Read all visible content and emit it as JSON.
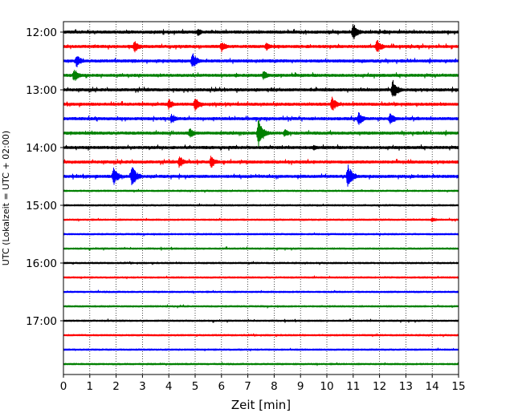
{
  "chart_data": {
    "type": "line",
    "title": "",
    "xlabel": "Zeit  [min]",
    "ylabel": "UTC (Lokalzeit = UTC + 02:00)",
    "xlim": [
      0,
      15
    ],
    "x_ticks": [
      0,
      1,
      2,
      3,
      4,
      5,
      6,
      7,
      8,
      9,
      10,
      11,
      12,
      13,
      14,
      15
    ],
    "y_tick_labels": [
      "12:00",
      "13:00",
      "14:00",
      "15:00",
      "16:00",
      "17:00"
    ],
    "grid": "vertical dotted lines at each minute",
    "trace_colors": [
      "#000000",
      "#ff0000",
      "#0000ff",
      "#008000"
    ],
    "line_interval_min": 15,
    "series": [
      {
        "start": "12:00",
        "color": "#000000",
        "events": [
          {
            "x": 5.1,
            "amp": 0.55
          },
          {
            "x": 11.0,
            "amp": 1.3
          },
          {
            "x": 12.2,
            "amp": 0.35
          }
        ]
      },
      {
        "start": "12:15",
        "color": "#ff0000",
        "events": [
          {
            "x": 2.7,
            "amp": 0.9
          },
          {
            "x": 6.0,
            "amp": 0.8
          },
          {
            "x": 7.7,
            "amp": 0.6
          },
          {
            "x": 11.9,
            "amp": 1.1
          }
        ]
      },
      {
        "start": "12:30",
        "color": "#0000ff",
        "events": [
          {
            "x": 0.5,
            "amp": 0.95
          },
          {
            "x": 4.9,
            "amp": 1.25
          }
        ]
      },
      {
        "start": "12:45",
        "color": "#008000",
        "events": [
          {
            "x": 0.4,
            "amp": 1.0
          },
          {
            "x": 7.6,
            "amp": 0.7
          }
        ]
      },
      {
        "start": "13:00",
        "color": "#000000",
        "events": [
          {
            "x": 12.5,
            "amp": 1.5
          }
        ]
      },
      {
        "start": "13:15",
        "color": "#ff0000",
        "events": [
          {
            "x": 4.0,
            "amp": 0.8
          },
          {
            "x": 5.0,
            "amp": 1.0
          },
          {
            "x": 10.2,
            "amp": 1.1
          }
        ]
      },
      {
        "start": "13:30",
        "color": "#0000ff",
        "events": [
          {
            "x": 4.1,
            "amp": 0.8
          },
          {
            "x": 11.2,
            "amp": 1.0
          },
          {
            "x": 12.4,
            "amp": 1.0
          }
        ]
      },
      {
        "start": "13:45",
        "color": "#008000",
        "events": [
          {
            "x": 4.8,
            "amp": 0.8
          },
          {
            "x": 7.4,
            "amp": 2.2
          },
          {
            "x": 8.4,
            "amp": 0.6
          }
        ]
      },
      {
        "start": "14:00",
        "color": "#000000",
        "events": [
          {
            "x": 9.5,
            "amp": 0.4
          }
        ]
      },
      {
        "start": "14:15",
        "color": "#ff0000",
        "events": [
          {
            "x": 4.4,
            "amp": 0.9
          },
          {
            "x": 5.6,
            "amp": 0.9
          }
        ]
      },
      {
        "start": "14:30",
        "color": "#0000ff",
        "events": [
          {
            "x": 1.9,
            "amp": 1.3
          },
          {
            "x": 2.6,
            "amp": 1.6
          },
          {
            "x": 10.8,
            "amp": 1.7
          }
        ]
      },
      {
        "start": "14:45",
        "color": "#008000",
        "events": []
      },
      {
        "start": "15:00",
        "color": "#000000",
        "events": []
      },
      {
        "start": "15:15",
        "color": "#ff0000",
        "events": [
          {
            "x": 14.0,
            "amp": 0.35
          }
        ]
      },
      {
        "start": "15:30",
        "color": "#0000ff",
        "events": []
      },
      {
        "start": "15:45",
        "color": "#008000",
        "events": []
      },
      {
        "start": "16:00",
        "color": "#000000",
        "events": []
      },
      {
        "start": "16:15",
        "color": "#ff0000",
        "events": []
      },
      {
        "start": "16:30",
        "color": "#0000ff",
        "events": []
      },
      {
        "start": "16:45",
        "color": "#008000",
        "events": []
      },
      {
        "start": "17:00",
        "color": "#000000",
        "events": []
      },
      {
        "start": "17:15",
        "color": "#ff0000",
        "events": []
      },
      {
        "start": "17:30",
        "color": "#0000ff",
        "events": []
      },
      {
        "start": "17:45",
        "color": "#008000",
        "events": []
      }
    ]
  }
}
